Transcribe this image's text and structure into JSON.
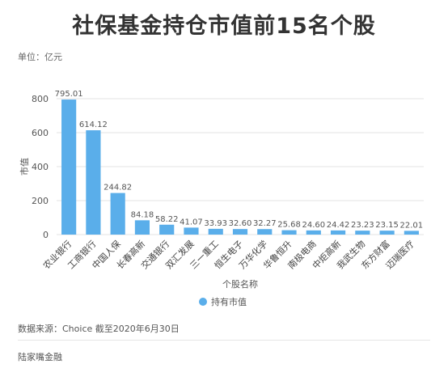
{
  "title": "社保基金持仓市值前15名个股",
  "unit_label": "单位：亿元",
  "source_note": "数据来源：Choice 截至2020年6月30日",
  "brand": "陆家嘴金融",
  "colors": {
    "bar": "#5aaeea",
    "grid": "#e3e3e3",
    "text": "#333333"
  },
  "chart_data": {
    "type": "bar",
    "title": "社保基金持仓市值前15名个股",
    "xlabel": "个股名称",
    "ylabel": "市值",
    "ylim": [
      0,
      800
    ],
    "yticks": [
      0,
      200,
      400,
      600,
      800
    ],
    "grid": true,
    "legend_position": "bottom-center",
    "categories": [
      "农业银行",
      "工商银行",
      "中国人保",
      "长春高新",
      "交通银行",
      "双汇发展",
      "三一重工",
      "恒生电子",
      "万华化学",
      "华鲁恒升",
      "南极电商",
      "中炬高新",
      "我武生物",
      "东方财富",
      "迈瑞医疗"
    ],
    "series": [
      {
        "name": "持有市值",
        "values": [
          795.01,
          614.12,
          244.82,
          84.18,
          58.22,
          41.07,
          33.93,
          32.6,
          32.27,
          25.68,
          24.6,
          24.42,
          23.23,
          23.15,
          22.01
        ],
        "labels": [
          "795.01",
          "614.12",
          "244.82",
          "84.18",
          "58.22",
          "41.07",
          "33.93",
          "32.60",
          "32.27",
          "25.68",
          "24.60",
          "24.42",
          "23.23",
          "23.15",
          "22.01"
        ]
      }
    ]
  }
}
